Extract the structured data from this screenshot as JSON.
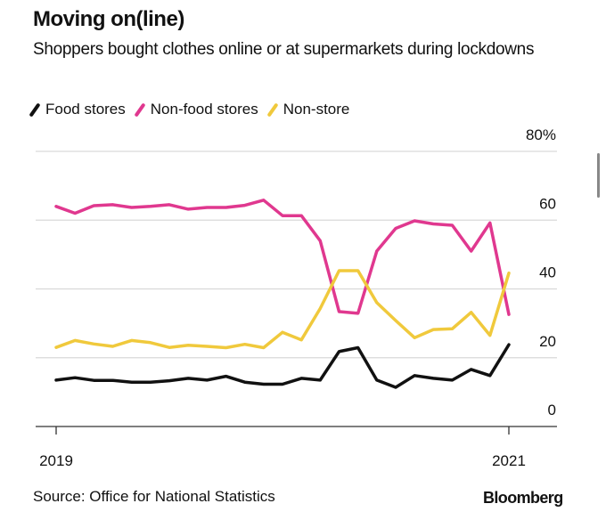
{
  "chart_data": {
    "type": "line",
    "title": "Moving on(line)",
    "subtitle": "Shoppers bought clothes online or at supermarkets during lockdowns",
    "source": "Source: Office for National Statistics",
    "brand": "Bloomberg",
    "x": [
      "2019-01",
      "2019-02",
      "2019-03",
      "2019-04",
      "2019-05",
      "2019-06",
      "2019-07",
      "2019-08",
      "2019-09",
      "2019-10",
      "2019-11",
      "2019-12",
      "2020-01",
      "2020-02",
      "2020-03",
      "2020-04",
      "2020-05",
      "2020-06",
      "2020-07",
      "2020-08",
      "2020-09",
      "2020-10",
      "2020-11",
      "2020-12",
      "2021-01"
    ],
    "x_ticks": [
      {
        "x": "2019-01",
        "label": "2019"
      },
      {
        "x": "2021-01",
        "label": "2021"
      }
    ],
    "y_ticks": [
      {
        "v": 0,
        "label": "0"
      },
      {
        "v": 20,
        "label": "20"
      },
      {
        "v": 40,
        "label": "40"
      },
      {
        "v": 60,
        "label": "60"
      },
      {
        "v": 80,
        "label": "80%"
      }
    ],
    "ylim": [
      0,
      80
    ],
    "grid": true,
    "y_axis_side": "right",
    "legend_placement": "top-left",
    "series": [
      {
        "name": "Food stores",
        "color": "#111111",
        "values": [
          13.5,
          14.2,
          13.4,
          13.4,
          12.9,
          12.9,
          13.3,
          14.0,
          13.5,
          14.6,
          12.9,
          12.3,
          12.3,
          14.0,
          13.5,
          21.8,
          22.9,
          13.5,
          11.4,
          14.8,
          14.0,
          13.5,
          16.6,
          14.8,
          23.8
        ]
      },
      {
        "name": "Non-food stores",
        "color": "#e0388f",
        "values": [
          64.0,
          62.0,
          64.2,
          64.5,
          63.7,
          64.0,
          64.5,
          63.2,
          63.7,
          63.7,
          64.3,
          65.8,
          61.3,
          61.3,
          54.0,
          33.4,
          32.9,
          51.0,
          57.6,
          59.8,
          58.9,
          58.5,
          51.0,
          59.2,
          32.6
        ]
      },
      {
        "name": "Non-store",
        "color": "#f0c93c",
        "values": [
          23.0,
          25.0,
          24.0,
          23.3,
          25.0,
          24.4,
          23.0,
          23.6,
          23.3,
          22.9,
          23.9,
          22.9,
          27.4,
          25.2,
          34.3,
          45.3,
          45.3,
          36.0,
          30.8,
          25.8,
          28.2,
          28.4,
          33.2,
          26.5,
          44.6
        ]
      }
    ]
  }
}
